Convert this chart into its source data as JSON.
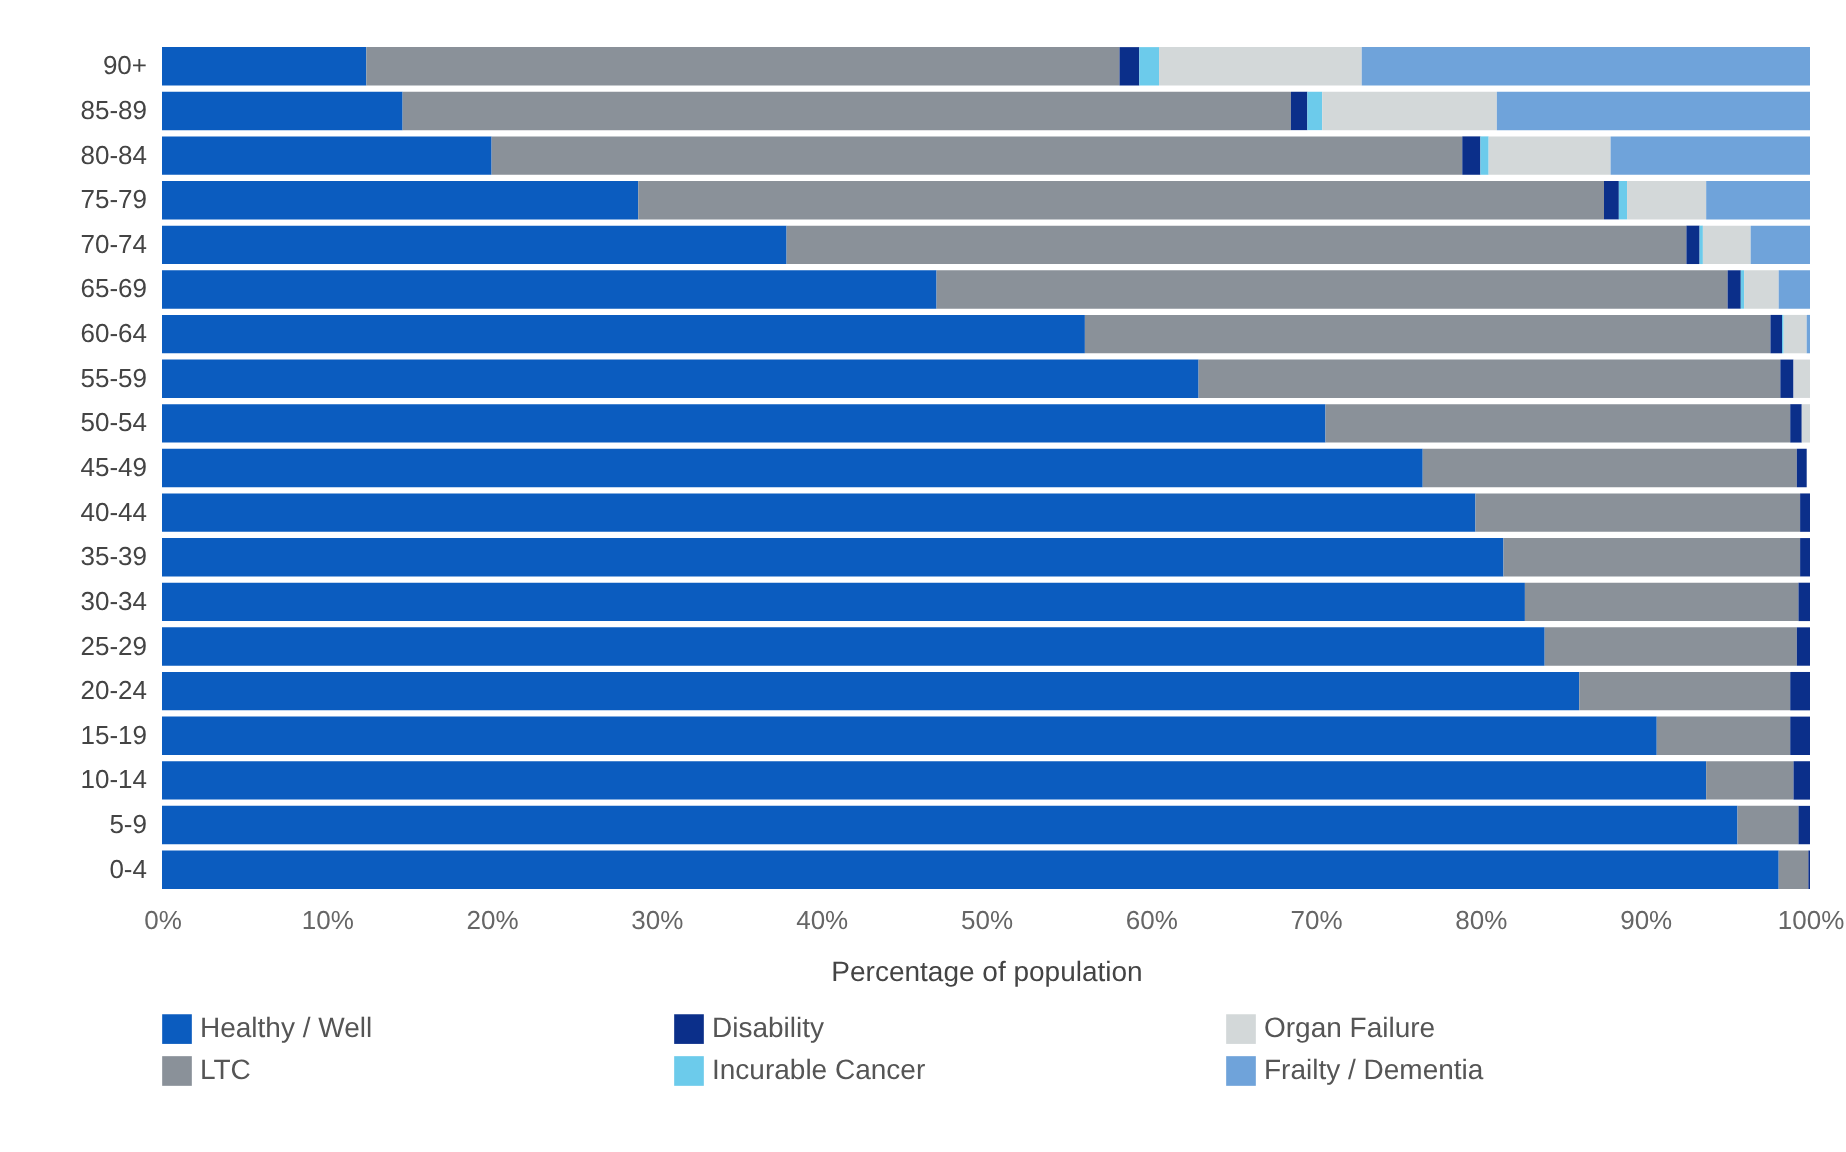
{
  "chart_data": {
    "type": "bar",
    "orientation": "horizontal",
    "stacked": true,
    "xlabel": "Percentage of population",
    "categories": [
      "90+",
      "85-89",
      "80-84",
      "75-79",
      "70-74",
      "65-69",
      "60-64",
      "55-59",
      "50-54",
      "45-49",
      "40-44",
      "35-39",
      "30-34",
      "25-29",
      "20-24",
      "15-19",
      "10-14",
      "5-9",
      "0-4"
    ],
    "series": [
      {
        "name": "Healthy / Well",
        "color": "#0b5cbf",
        "values": [
          12.4,
          14.6,
          20.0,
          28.9,
          37.9,
          47.0,
          56.0,
          62.9,
          70.6,
          76.5,
          79.7,
          81.4,
          82.7,
          83.9,
          86.0,
          90.7,
          93.7,
          95.6,
          98.1
        ]
      },
      {
        "name": "LTC",
        "color": "#8a9199",
        "values": [
          45.7,
          53.9,
          58.9,
          58.6,
          54.6,
          48.0,
          41.6,
          35.3,
          28.2,
          22.7,
          19.7,
          18.0,
          16.6,
          15.3,
          12.8,
          8.1,
          5.3,
          3.7,
          1.8
        ]
      },
      {
        "name": "Disability",
        "color": "#0b2f8a",
        "values": [
          1.2,
          1.0,
          1.1,
          0.9,
          0.8,
          0.8,
          0.7,
          0.8,
          0.7,
          0.6,
          0.6,
          0.6,
          0.7,
          0.8,
          1.2,
          1.2,
          1.0,
          0.7,
          0.1
        ]
      },
      {
        "name": "Incurable Cancer",
        "color": "#6ccbeb",
        "values": [
          1.2,
          0.9,
          0.5,
          0.5,
          0.2,
          0.2,
          0.1,
          null,
          null,
          null,
          null,
          null,
          null,
          null,
          null,
          null,
          null,
          null,
          null
        ]
      },
      {
        "name": "Organ Failure",
        "color": "#d3d8d9",
        "values": [
          12.3,
          10.6,
          7.4,
          4.8,
          2.9,
          2.1,
          1.4,
          1.0,
          0.5,
          null,
          null,
          null,
          null,
          null,
          null,
          null,
          null,
          null,
          null
        ]
      },
      {
        "name": "Frailty / Dementia",
        "color": "#6fa3da",
        "values": [
          27.2,
          19.0,
          12.1,
          6.3,
          3.6,
          1.9,
          0.2,
          null,
          null,
          null,
          null,
          null,
          null,
          null,
          null,
          null,
          null,
          null,
          null
        ]
      }
    ],
    "xlim": [
      0,
      100
    ],
    "xticks": [
      {
        "value": 0,
        "label": "0%"
      },
      {
        "value": 10,
        "label": "10%"
      },
      {
        "value": 20,
        "label": "20%"
      },
      {
        "value": 30,
        "label": "30%"
      },
      {
        "value": 40,
        "label": "40%"
      },
      {
        "value": 50,
        "label": "50%"
      },
      {
        "value": 60,
        "label": "60%"
      },
      {
        "value": 70,
        "label": "70%"
      },
      {
        "value": 80,
        "label": "80%"
      },
      {
        "value": 90,
        "label": "90%"
      },
      {
        "value": 100,
        "label": "100%"
      }
    ],
    "grid": false,
    "legend": "bottom"
  }
}
